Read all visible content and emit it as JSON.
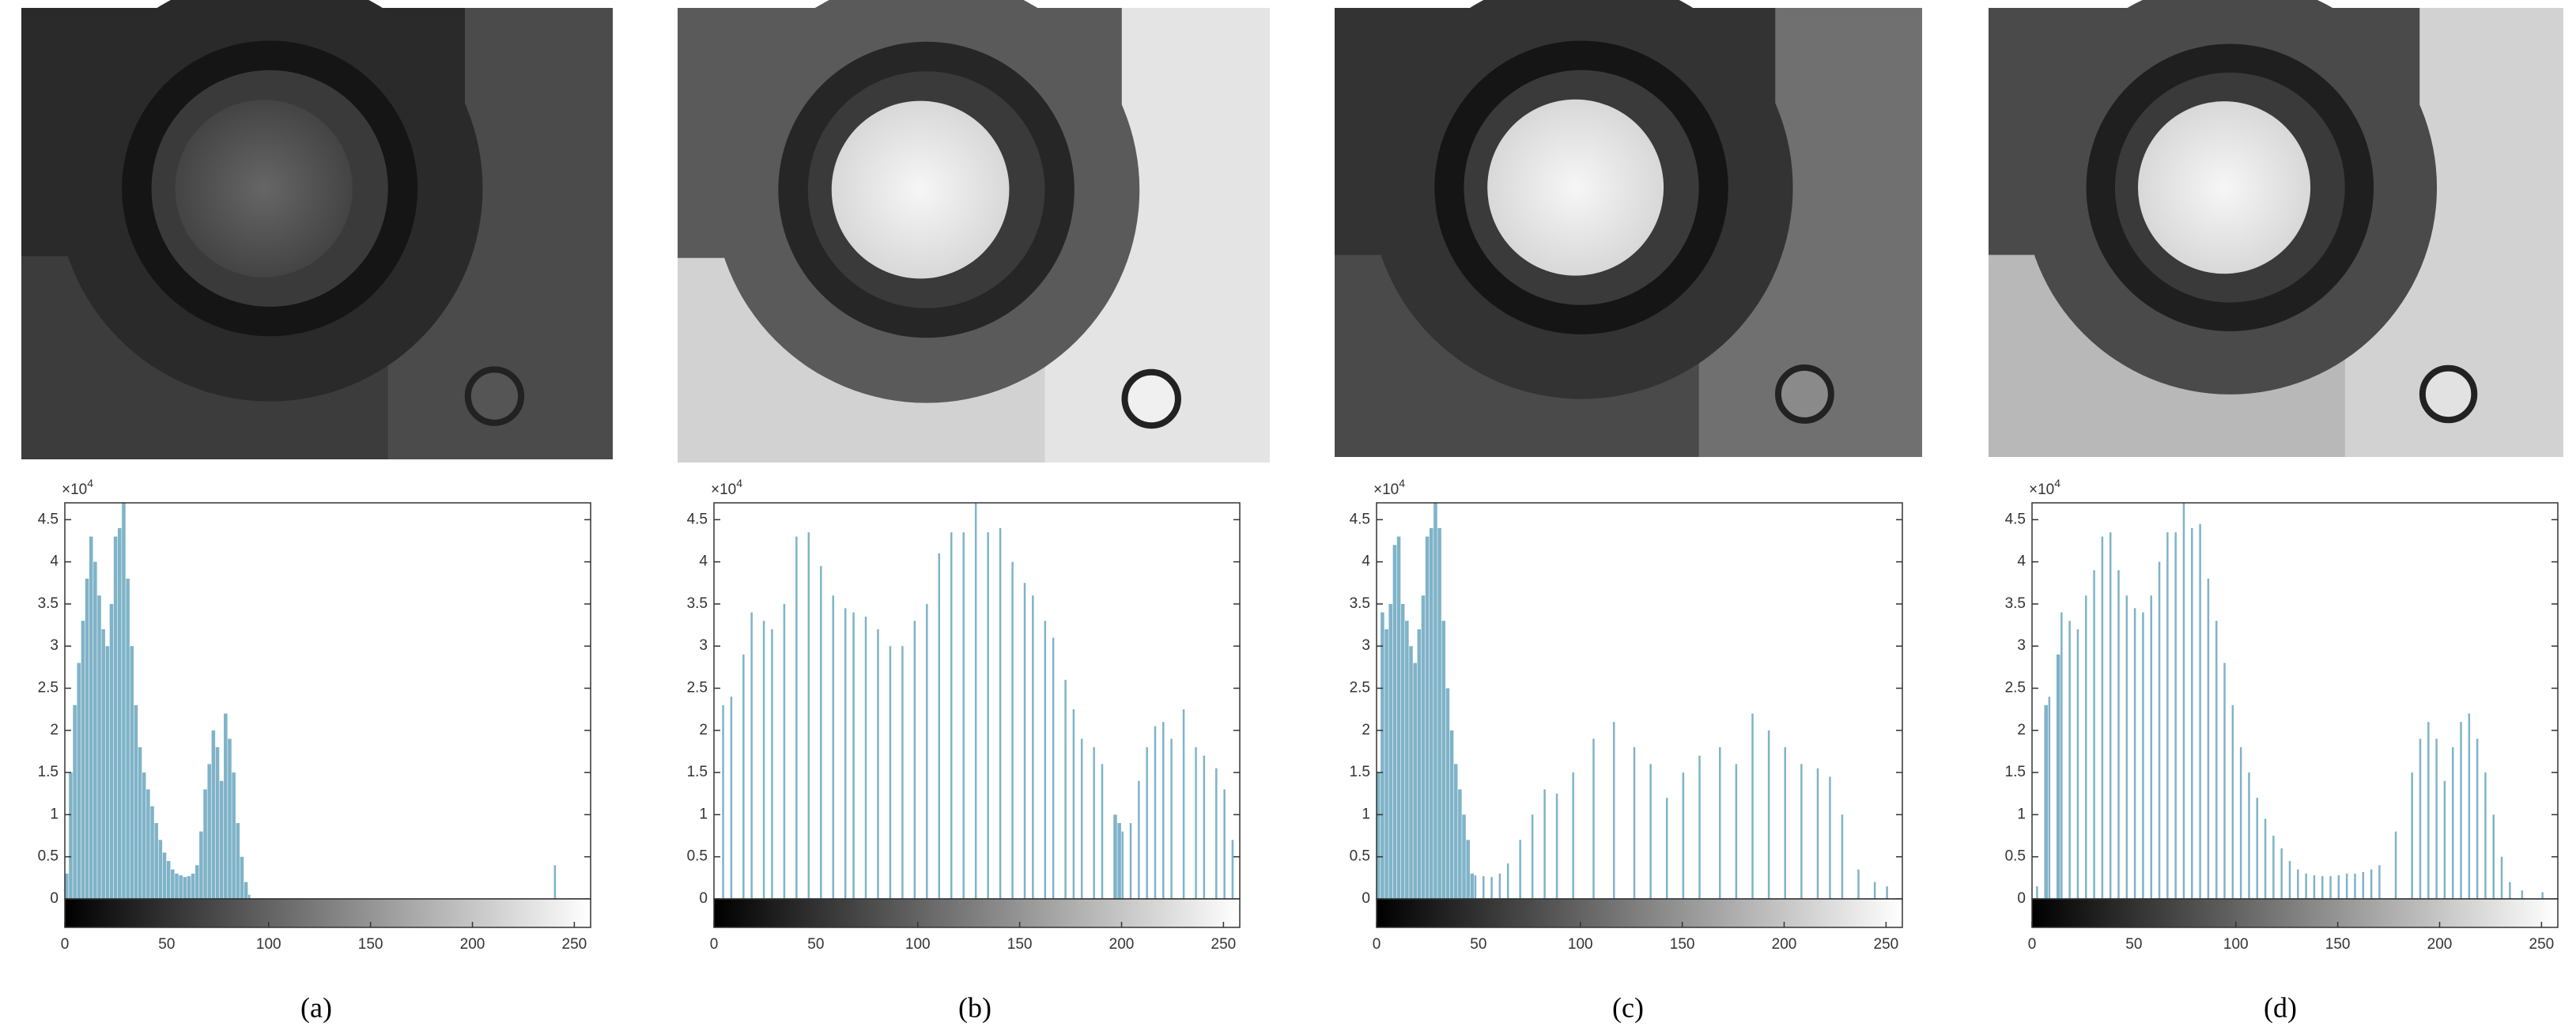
{
  "chart_data": [
    {
      "type": "bar",
      "caption": "(a)",
      "color": "#7fb3c8",
      "y_multiplier": {
        "base": "×10",
        "power": "4"
      },
      "x": [
        0,
        2,
        4,
        6,
        8,
        10,
        12,
        14,
        16,
        18,
        20,
        22,
        24,
        26,
        28,
        30,
        32,
        34,
        36,
        38,
        40,
        42,
        44,
        46,
        48,
        50,
        52,
        54,
        56,
        58,
        60,
        62,
        64,
        66,
        68,
        70,
        72,
        74,
        76,
        78,
        80,
        82,
        84,
        86,
        88,
        90,
        240
      ],
      "values": [
        0.3,
        1.5,
        2.3,
        2.8,
        3.3,
        3.8,
        4.3,
        4.0,
        3.6,
        3.2,
        3.0,
        3.5,
        4.3,
        4.4,
        4.7,
        3.8,
        3.0,
        2.3,
        1.8,
        1.5,
        1.3,
        1.1,
        0.9,
        0.7,
        0.55,
        0.45,
        0.35,
        0.3,
        0.28,
        0.26,
        0.27,
        0.3,
        0.4,
        0.8,
        1.3,
        1.6,
        2.0,
        1.8,
        1.4,
        2.2,
        1.9,
        1.5,
        0.9,
        0.5,
        0.2,
        0.05,
        0.4
      ],
      "xlim": [
        0,
        258
      ],
      "xticks": [
        0,
        50,
        100,
        150,
        200,
        250
      ],
      "ylim": [
        0,
        4.7
      ],
      "yticks": [
        0,
        0.5,
        1,
        1.5,
        2,
        2.5,
        3,
        3.5,
        4,
        4.5
      ]
    },
    {
      "type": "bar",
      "caption": "(b)",
      "color": "#7fb3c8",
      "y_multiplier": {
        "base": "×10",
        "power": "4"
      },
      "x": [
        4,
        8,
        14,
        18,
        24,
        28,
        34,
        40,
        46,
        52,
        58,
        64,
        68,
        74,
        80,
        86,
        92,
        98,
        104,
        110,
        116,
        122,
        128,
        134,
        140,
        146,
        152,
        156,
        162,
        166,
        172,
        176,
        180,
        186,
        190,
        196,
        198,
        200,
        204,
        208,
        212,
        216,
        220,
        224,
        230,
        236,
        240,
        246,
        250,
        254
      ],
      "values": [
        2.3,
        2.4,
        2.9,
        3.4,
        3.3,
        3.2,
        3.5,
        4.3,
        4.35,
        3.95,
        3.6,
        3.45,
        3.4,
        3.35,
        3.2,
        3.0,
        3.0,
        3.3,
        3.5,
        4.1,
        4.35,
        4.35,
        4.7,
        4.35,
        4.4,
        4.0,
        3.75,
        3.6,
        3.3,
        3.1,
        2.6,
        2.25,
        1.9,
        1.8,
        1.6,
        1.0,
        0.9,
        0.8,
        0.9,
        1.4,
        1.8,
        2.05,
        2.1,
        1.9,
        2.25,
        1.8,
        1.7,
        1.55,
        1.3,
        0.7
      ],
      "xlim": [
        0,
        258
      ],
      "xticks": [
        0,
        50,
        100,
        150,
        200,
        250
      ],
      "ylim": [
        0,
        4.7
      ],
      "yticks": [
        0,
        0.5,
        1,
        1.5,
        2,
        2.5,
        3,
        3.5,
        4,
        4.5
      ]
    },
    {
      "type": "bar",
      "caption": "(c)",
      "color": "#7fb3c8",
      "y_multiplier": {
        "base": "×10",
        "power": "4"
      },
      "x": [
        0,
        2,
        4,
        6,
        8,
        10,
        12,
        14,
        16,
        18,
        20,
        22,
        24,
        26,
        28,
        30,
        32,
        34,
        36,
        38,
        40,
        42,
        44,
        46,
        48,
        52,
        56,
        60,
        64,
        70,
        76,
        82,
        88,
        96,
        106,
        116,
        126,
        134,
        142,
        150,
        158,
        168,
        176,
        184,
        192,
        200,
        208,
        216,
        222,
        228,
        236,
        244,
        250
      ],
      "values": [
        1.5,
        3.4,
        3.2,
        3.5,
        4.2,
        4.3,
        3.5,
        3.3,
        3.0,
        2.8,
        3.2,
        3.6,
        4.3,
        4.4,
        4.7,
        4.4,
        3.3,
        2.5,
        2.0,
        1.6,
        1.3,
        1.0,
        0.7,
        0.3,
        0.28,
        0.27,
        0.26,
        0.3,
        0.42,
        0.7,
        1.0,
        1.3,
        1.25,
        1.5,
        1.9,
        2.1,
        1.8,
        1.6,
        1.2,
        1.5,
        1.7,
        1.8,
        1.6,
        2.2,
        2.0,
        1.8,
        1.6,
        1.55,
        1.45,
        1.0,
        0.35,
        0.2,
        0.15
      ],
      "xlim": [
        0,
        258
      ],
      "xticks": [
        0,
        50,
        100,
        150,
        200,
        250
      ],
      "ylim": [
        0,
        4.7
      ],
      "yticks": [
        0,
        0.5,
        1,
        1.5,
        2,
        2.5,
        3,
        3.5,
        4,
        4.5
      ]
    },
    {
      "type": "bar",
      "caption": "(d)",
      "color": "#7fb3c8",
      "y_multiplier": {
        "base": "×10",
        "power": "4"
      },
      "x": [
        2,
        6,
        8,
        12,
        14,
        18,
        22,
        26,
        30,
        34,
        38,
        42,
        46,
        50,
        54,
        58,
        62,
        66,
        70,
        74,
        78,
        82,
        86,
        90,
        94,
        98,
        102,
        106,
        110,
        114,
        118,
        122,
        126,
        130,
        134,
        138,
        142,
        146,
        150,
        154,
        158,
        162,
        166,
        170,
        178,
        186,
        190,
        194,
        198,
        202,
        206,
        210,
        214,
        218,
        222,
        226,
        230,
        234,
        240,
        250
      ],
      "values": [
        0.15,
        2.3,
        2.4,
        2.9,
        3.4,
        3.3,
        3.2,
        3.6,
        3.9,
        4.3,
        4.35,
        3.9,
        3.6,
        3.45,
        3.4,
        3.6,
        4.0,
        4.35,
        4.35,
        4.7,
        4.4,
        4.45,
        3.8,
        3.3,
        2.8,
        2.3,
        1.8,
        1.5,
        1.2,
        0.95,
        0.75,
        0.6,
        0.45,
        0.35,
        0.3,
        0.28,
        0.27,
        0.27,
        0.28,
        0.3,
        0.3,
        0.32,
        0.35,
        0.4,
        0.8,
        1.5,
        1.9,
        2.1,
        1.9,
        1.4,
        1.8,
        2.1,
        2.2,
        1.9,
        1.5,
        1.0,
        0.5,
        0.2,
        0.1,
        0.08
      ],
      "xlim": [
        0,
        258
      ],
      "xticks": [
        0,
        50,
        100,
        150,
        200,
        250
      ],
      "ylim": [
        0,
        4.7
      ],
      "yticks": [
        0,
        0.5,
        1,
        1.5,
        2,
        2.5,
        3,
        3.5,
        4,
        4.5
      ]
    }
  ]
}
